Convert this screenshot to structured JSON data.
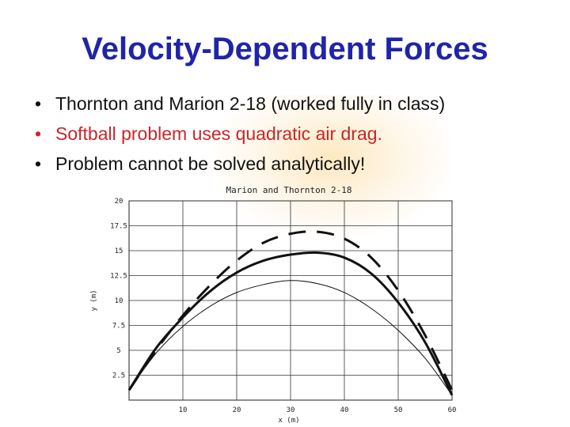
{
  "slide": {
    "title": "Velocity-Dependent Forces",
    "bullets": [
      {
        "text": "Thornton and Marion 2-18 (worked fully in class)",
        "color": "#111111"
      },
      {
        "text": "Softball problem uses quadratic air drag.",
        "color": "#c8262a"
      },
      {
        "text": "Problem cannot be solved analytically!",
        "color": "#111111"
      }
    ]
  },
  "chart_data": {
    "type": "line",
    "title": "Marion and Thornton 2-18",
    "xlabel": "x (m)",
    "ylabel": "y (m)",
    "xlim": [
      0,
      60
    ],
    "ylim": [
      0,
      20
    ],
    "x_ticks": [
      "10",
      "20",
      "30",
      "40",
      "50",
      "60"
    ],
    "y_ticks": [
      "2.5",
      "5",
      "7.5",
      "10",
      "12.5",
      "15",
      "17.5",
      "20"
    ],
    "grid": true,
    "series": [
      {
        "style": "dashed",
        "points": [
          [
            0,
            1
          ],
          [
            5,
            5
          ],
          [
            10,
            8.5
          ],
          [
            15,
            11.5
          ],
          [
            20,
            14
          ],
          [
            25,
            15.8
          ],
          [
            30,
            16.7
          ],
          [
            35,
            16.9
          ],
          [
            40,
            16.2
          ],
          [
            45,
            14.3
          ],
          [
            50,
            11
          ],
          [
            55,
            6.5
          ],
          [
            60,
            1
          ]
        ]
      },
      {
        "style": "thick",
        "points": [
          [
            0,
            1
          ],
          [
            5,
            5.2
          ],
          [
            10,
            8.3
          ],
          [
            15,
            10.9
          ],
          [
            20,
            12.8
          ],
          [
            25,
            14
          ],
          [
            30,
            14.6
          ],
          [
            35,
            14.8
          ],
          [
            40,
            14.3
          ],
          [
            45,
            12.7
          ],
          [
            50,
            9.8
          ],
          [
            55,
            5.8
          ],
          [
            60,
            0.5
          ]
        ]
      },
      {
        "style": "thin",
        "points": [
          [
            0,
            1
          ],
          [
            5,
            4.7
          ],
          [
            10,
            7.4
          ],
          [
            15,
            9.4
          ],
          [
            20,
            10.8
          ],
          [
            25,
            11.6
          ],
          [
            30,
            12
          ],
          [
            35,
            11.7
          ],
          [
            40,
            10.8
          ],
          [
            45,
            9.2
          ],
          [
            50,
            7
          ],
          [
            55,
            4.2
          ],
          [
            60,
            0.5
          ]
        ]
      }
    ]
  }
}
